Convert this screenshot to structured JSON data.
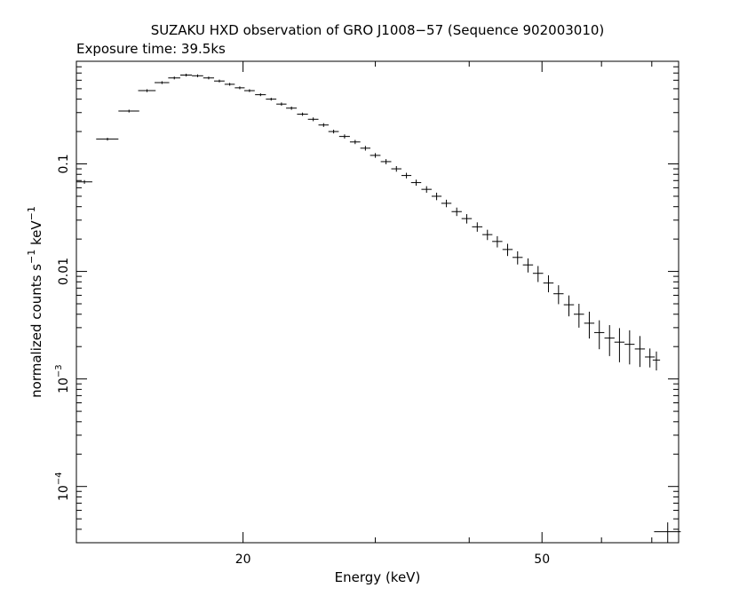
{
  "chart_data": {
    "type": "scatter",
    "title": "SUZAKU HXD observation of GRO J1008−57 (Sequence 902003010)",
    "subtitle": "Exposure time: 39.5ks",
    "xlabel": "Energy (keV)",
    "ylabel_main": "normalized counts s",
    "ylabel_sup1": "−1",
    "ylabel_mid": " keV",
    "ylabel_sup2": "−1",
    "xscale": "log",
    "yscale": "log",
    "xlim": [
      12,
      76
    ],
    "ylim": [
      3e-05,
      0.9
    ],
    "x_ticks": [
      {
        "value": 20,
        "label": "20"
      },
      {
        "value": 50,
        "label": "50"
      }
    ],
    "y_ticks": [
      {
        "value": 0.0001,
        "base": "10",
        "exp": "−4"
      },
      {
        "value": 0.001,
        "base": "10",
        "exp": "−3"
      },
      {
        "value": 0.01,
        "label": "0.01"
      },
      {
        "value": 0.1,
        "label": "0.1"
      }
    ],
    "grid": false,
    "legend": "none",
    "series": [
      {
        "x": [
          12.3,
          13.2,
          14.1,
          14.9,
          15.6,
          16.2,
          16.8,
          17.4,
          18.0,
          18.6,
          19.2,
          19.8,
          20.4,
          21.1,
          21.8,
          22.5,
          23.2,
          24.0,
          24.8,
          25.6,
          26.4,
          27.3,
          28.2,
          29.1,
          30.0,
          31.0,
          32.0,
          33.0,
          34.0,
          35.1,
          36.2,
          37.3,
          38.5,
          39.7,
          41.0,
          42.3,
          43.6,
          45.0,
          46.4,
          47.9,
          49.4,
          51.0,
          52.6,
          54.3,
          56.0,
          57.8,
          59.6,
          61.5,
          63.4,
          65.4,
          67.5,
          69.6,
          71.0
        ],
        "y": [
          0.068,
          0.17,
          0.31,
          0.48,
          0.57,
          0.63,
          0.67,
          0.66,
          0.63,
          0.59,
          0.55,
          0.51,
          0.48,
          0.44,
          0.4,
          0.36,
          0.33,
          0.29,
          0.26,
          0.23,
          0.2,
          0.18,
          0.16,
          0.14,
          0.12,
          0.105,
          0.09,
          0.078,
          0.067,
          0.058,
          0.05,
          0.043,
          0.036,
          0.031,
          0.026,
          0.022,
          0.019,
          0.016,
          0.0135,
          0.0115,
          0.0096,
          0.0078,
          0.0062,
          0.0049,
          0.004,
          0.0033,
          0.0027,
          0.0024,
          0.0022,
          0.0021,
          0.0019,
          0.0016,
          0.0015
        ],
        "xerr": [
          0.3,
          0.45,
          0.45,
          0.4,
          0.35,
          0.3,
          0.3,
          0.3,
          0.3,
          0.3,
          0.3,
          0.3,
          0.33,
          0.35,
          0.35,
          0.35,
          0.38,
          0.4,
          0.4,
          0.4,
          0.42,
          0.45,
          0.45,
          0.45,
          0.48,
          0.5,
          0.5,
          0.5,
          0.53,
          0.55,
          0.55,
          0.58,
          0.6,
          0.62,
          0.65,
          0.65,
          0.68,
          0.7,
          0.72,
          0.75,
          0.78,
          0.8,
          0.82,
          0.85,
          0.88,
          0.9,
          0.92,
          0.95,
          0.98,
          1.0,
          1.05,
          1.05,
          0.8
        ],
        "yerr_rel": [
          0.04,
          0.03,
          0.03,
          0.03,
          0.03,
          0.03,
          0.03,
          0.03,
          0.03,
          0.03,
          0.03,
          0.03,
          0.03,
          0.03,
          0.03,
          0.035,
          0.035,
          0.035,
          0.04,
          0.04,
          0.04,
          0.045,
          0.045,
          0.05,
          0.05,
          0.055,
          0.06,
          0.06,
          0.065,
          0.07,
          0.08,
          0.08,
          0.09,
          0.1,
          0.1,
          0.11,
          0.12,
          0.13,
          0.14,
          0.15,
          0.17,
          0.18,
          0.2,
          0.22,
          0.25,
          0.28,
          0.3,
          0.32,
          0.35,
          0.35,
          0.32,
          0.2,
          0.2
        ]
      },
      {
        "x": [
          73.5
        ],
        "y": [
          3.8e-05
        ],
        "xerr": [
          3.0
        ],
        "yerr_rel": [
          0.22
        ]
      }
    ]
  }
}
